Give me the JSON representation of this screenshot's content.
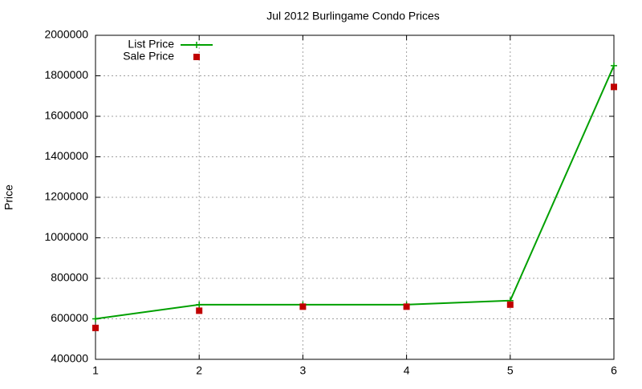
{
  "chart_data": {
    "type": "line",
    "title": "Jul 2012 Burlingame Condo Prices",
    "y_label": "Price",
    "x": [
      1,
      2,
      3,
      4,
      5,
      6
    ],
    "series": [
      {
        "name": "List Price",
        "color": "#00a000",
        "mode": "linespoints",
        "values": [
          600000,
          670000,
          670000,
          670000,
          690000,
          1850000
        ]
      },
      {
        "name": "Sale Price",
        "color": "#c00000",
        "mode": "points",
        "values": [
          555000,
          640000,
          660000,
          660000,
          670000,
          1745000
        ]
      }
    ],
    "xlim": [
      1,
      6
    ],
    "xticks": [
      1,
      2,
      3,
      4,
      5,
      6
    ],
    "ylim": [
      400000,
      2000000
    ],
    "yticks": [
      400000,
      600000,
      800000,
      1000000,
      1200000,
      1400000,
      1600000,
      1800000,
      2000000
    ],
    "grid": true,
    "legend": "top-left"
  }
}
